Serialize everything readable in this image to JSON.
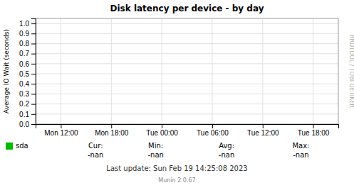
{
  "chart_data": {
    "type": "line",
    "title": "Disk latency per device - by day",
    "y_label": "Average IO Wait (seconds)",
    "categories": [
      "Mon 12:00",
      "Mon 18:00",
      "Tue 00:00",
      "Tue 06:00",
      "Tue 12:00",
      "Tue 18:00"
    ],
    "series": [
      {
        "name": "sda",
        "color": "#00bb00",
        "values": [
          null,
          null,
          null,
          null,
          null,
          null
        ]
      }
    ],
    "ylim": [
      0.0,
      1.05
    ],
    "yticks": [
      {
        "value": 0.0,
        "label": "0.0"
      },
      0.1,
      0.2,
      0.3,
      0.4,
      0.5,
      0.6,
      0.7,
      0.8,
      0.9,
      {
        "value": 1.0,
        "label": "1.0"
      }
    ],
    "grid": true,
    "legend": "bottom-left",
    "annotations": [
      "Cur:",
      "-nan",
      "Min:",
      "-nan",
      "Avg:",
      "-nan",
      "Max:",
      "-nan",
      "Last update: Sun Feb 19 14:25:08 2023",
      "Munin 2.0.67",
      "RRDTOOL / TOBI OETIKER"
    ]
  }
}
